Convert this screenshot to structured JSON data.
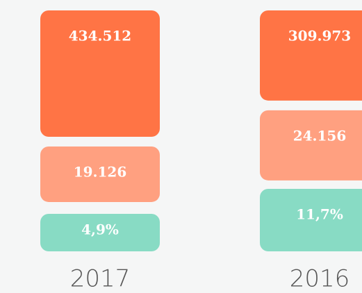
{
  "chart_data": {
    "type": "bar",
    "stacked": true,
    "categories": [
      "2017",
      "2016"
    ],
    "series": [
      {
        "color": "#ff7445",
        "values": [
          434512,
          309973
        ],
        "value_labels": [
          "434.512",
          "309.973"
        ]
      },
      {
        "color": "#ffa080",
        "values": [
          19126,
          24156
        ],
        "value_labels": [
          "19.126",
          "24.156"
        ]
      },
      {
        "color": "#88dbc4",
        "values": [
          4.9,
          11.7
        ],
        "value_labels": [
          "4,9%",
          "11,7%"
        ]
      }
    ]
  }
}
